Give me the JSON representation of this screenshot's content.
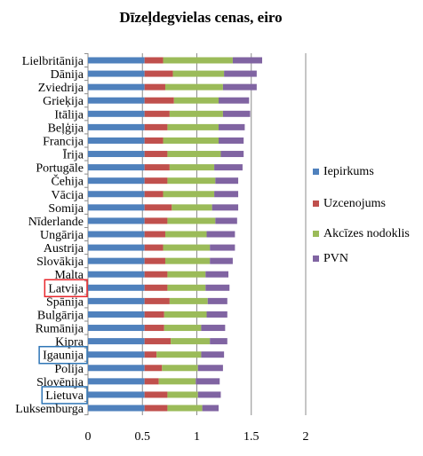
{
  "chart_data": {
    "type": "bar",
    "orientation": "horizontal",
    "stacked": true,
    "title": "Dīzeļdegvielas cenas, eiro",
    "xlabel": "",
    "ylabel": "",
    "xlim": [
      0,
      2
    ],
    "xticks": [
      0,
      0.5,
      1,
      1.5,
      2
    ],
    "xtick_labels": [
      "0",
      "0.5",
      "1",
      "1.5",
      "2"
    ],
    "grid": "vertical",
    "legend_position": "right",
    "categories": [
      "Lielbritānija",
      "Dānija",
      "Zviedrija",
      "Grieķija",
      "Itālija",
      "Beļģija",
      "Francija",
      "Īrija",
      "Portugāle",
      "Čehija",
      "Vācija",
      "Somija",
      "Nīderlande",
      "Ungārija",
      "Austrija",
      "Slovākija",
      "Malta",
      "Latvija",
      "Spānija",
      "Bulgārija",
      "Rumānija",
      "Kipra",
      "Igaunija",
      "Polija",
      "Slovēnija",
      "Lietuva",
      "Luksemburga"
    ],
    "highlighted": [
      {
        "category": "Latvija",
        "color": "#e8262b"
      },
      {
        "category": "Igaunija",
        "color": "#2e75b6"
      },
      {
        "category": "Lietuva",
        "color": "#2e75b6"
      }
    ],
    "series": [
      {
        "name": "Iepirkums",
        "color": "#4f81bd",
        "values": [
          0.52,
          0.52,
          0.52,
          0.52,
          0.52,
          0.52,
          0.52,
          0.52,
          0.52,
          0.52,
          0.52,
          0.52,
          0.52,
          0.52,
          0.52,
          0.52,
          0.52,
          0.52,
          0.52,
          0.52,
          0.52,
          0.52,
          0.52,
          0.52,
          0.52,
          0.52,
          0.52
        ]
      },
      {
        "name": "Uzcenojums",
        "color": "#c0504d",
        "values": [
          0.17,
          0.26,
          0.19,
          0.27,
          0.23,
          0.21,
          0.17,
          0.21,
          0.23,
          0.21,
          0.17,
          0.25,
          0.21,
          0.19,
          0.17,
          0.19,
          0.21,
          0.21,
          0.23,
          0.18,
          0.18,
          0.24,
          0.11,
          0.16,
          0.13,
          0.21,
          0.21
        ]
      },
      {
        "name": "Akcīzes nodoklis",
        "color": "#9bbb59",
        "values": [
          0.64,
          0.47,
          0.53,
          0.41,
          0.49,
          0.47,
          0.51,
          0.49,
          0.41,
          0.44,
          0.47,
          0.37,
          0.44,
          0.38,
          0.43,
          0.41,
          0.35,
          0.35,
          0.35,
          0.39,
          0.34,
          0.36,
          0.41,
          0.33,
          0.34,
          0.28,
          0.32
        ]
      },
      {
        "name": "PVN",
        "color": "#8064a2",
        "values": [
          0.27,
          0.3,
          0.31,
          0.28,
          0.25,
          0.24,
          0.23,
          0.21,
          0.26,
          0.21,
          0.22,
          0.24,
          0.2,
          0.26,
          0.23,
          0.21,
          0.21,
          0.22,
          0.18,
          0.19,
          0.22,
          0.16,
          0.21,
          0.23,
          0.22,
          0.21,
          0.15
        ]
      }
    ]
  }
}
